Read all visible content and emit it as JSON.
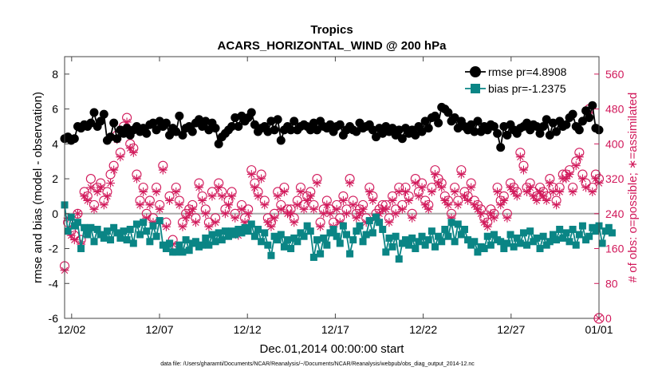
{
  "chart_data": {
    "type": "line",
    "title": "Tropics",
    "subtitle": "ACARS_HORIZONTAL_WIND @ 200 hPa",
    "xlabel": "Dec.01,2014 00:00:00 start",
    "ylabel_left": "rmse and bias (model - observation)",
    "ylabel_right": "# of obs: o=possible; ∗=assimilated",
    "ylim_left": [
      -6,
      9
    ],
    "ylim_right": [
      0,
      600
    ],
    "xlim_days": [
      0.6,
      31.0
    ],
    "x_ticks": [
      {
        "day": 1,
        "label": "12/02"
      },
      {
        "day": 6,
        "label": "12/07"
      },
      {
        "day": 11,
        "label": "12/12"
      },
      {
        "day": 16,
        "label": "12/17"
      },
      {
        "day": 21,
        "label": "12/22"
      },
      {
        "day": 26,
        "label": "12/27"
      },
      {
        "day": 31,
        "label": "01/01"
      }
    ],
    "y_ticks_left": [
      "-6",
      "-4",
      "-2",
      "0",
      "2",
      "4",
      "6",
      "8"
    ],
    "y_ticks_right": [
      "0",
      "80",
      "160",
      "240",
      "320",
      "400",
      "480",
      "560"
    ],
    "legend": [
      {
        "label": "rmse pr=4.8908",
        "color": "#000000"
      },
      {
        "label": "bias pr=-1.2375",
        "color": "#0a8585"
      }
    ],
    "colors": {
      "rmse": "#000000",
      "bias": "#0a8585",
      "obs": "#d1185a",
      "zero_line": "#aaaaaa",
      "axis": "#444444"
    },
    "series": [
      {
        "name": "rmse",
        "axis": "left",
        "values": [
          4.3,
          4.4,
          4.2,
          4.3,
          5.0,
          4.9,
          5.1,
          5.0,
          5.2,
          5.8,
          5.0,
          5.3,
          5.7,
          4.2,
          4.4,
          5.2,
          4.3,
          4.8,
          4.6,
          4.9,
          4.5,
          4.8,
          5.0,
          4.7,
          4.9,
          4.6,
          5.1,
          5.2,
          4.8,
          5.3,
          5.0,
          5.2,
          4.5,
          4.9,
          4.7,
          5.6,
          4.5,
          4.9,
          5.0,
          4.7,
          5.2,
          5.4,
          5.0,
          5.3,
          4.8,
          5.2,
          4.9,
          4.0,
          4.4,
          4.6,
          4.8,
          5.0,
          5.5,
          5.0,
          5.6,
          5.3,
          5.5,
          5.8,
          5.1,
          4.7,
          4.9,
          5.0,
          4.7,
          5.3,
          4.8,
          5.4,
          4.2,
          4.8,
          5.0,
          4.8,
          5.3,
          4.8,
          5.0,
          5.1,
          5.0,
          4.8,
          5.2,
          4.8,
          5.3,
          5.0,
          4.9,
          5.1,
          4.7,
          5.0,
          5.1,
          4.5,
          4.8,
          5.0,
          4.8,
          4.7,
          5.2,
          4.9,
          5.0,
          5.1,
          4.8,
          4.4,
          4.9,
          4.6,
          5.0,
          4.7,
          4.9,
          4.5,
          4.8,
          4.3,
          4.9,
          4.6,
          4.8,
          4.5,
          5.0,
          4.7,
          5.3,
          4.9,
          5.5,
          5.6,
          5.2,
          6.1,
          6.0,
          5.8,
          5.3,
          5.5,
          4.9,
          5.3,
          5.0,
          4.8,
          5.1,
          4.7,
          5.3,
          4.7,
          5.0,
          4.8,
          5.1,
          5.0,
          4.6,
          3.8,
          5.0,
          4.5,
          5.1,
          4.8,
          4.6,
          4.9,
          5.0,
          5.2,
          4.8,
          5.1,
          5.0,
          4.6,
          5.0,
          5.4,
          4.5,
          5.2,
          4.7,
          5.3,
          5.0,
          5.1,
          5.5,
          5.7,
          5.0,
          4.8,
          5.3,
          5.9,
          5.5,
          6.2,
          4.9,
          4.8
        ]
      },
      {
        "name": "bias",
        "axis": "left",
        "values": [
          0.5,
          -1.0,
          -0.2,
          -0.7,
          -0.5,
          -2.0,
          -0.8,
          -1.2,
          -0.8,
          -1.6,
          -0.9,
          -1.2,
          -1.4,
          -1.0,
          -1.5,
          -0.8,
          -1.1,
          -1.4,
          -1.0,
          -1.5,
          -0.9,
          -1.7,
          -0.6,
          -1.2,
          -0.5,
          -1.0,
          -1.6,
          -0.7,
          -1.3,
          -0.4,
          -1.8,
          -2.0,
          -1.7,
          -2.2,
          -2.2,
          -1.8,
          -2.2,
          -1.5,
          -2.1,
          -1.7,
          -1.6,
          -1.9,
          -1.8,
          -1.4,
          -1.8,
          -1.2,
          -1.6,
          -1.1,
          -1.5,
          -1.0,
          -1.3,
          -1.0,
          -1.2,
          -0.9,
          -1.1,
          -0.8,
          -1.0,
          -0.6,
          -1.3,
          -0.9,
          -1.6,
          -1.1,
          -1.8,
          -2.4,
          -1.3,
          -1.5,
          -1.2,
          -1.9,
          -1.5,
          -2.0,
          -1.4,
          -1.6,
          -1.1,
          -1.3,
          -0.7,
          -1.0,
          -2.5,
          -1.5,
          -2.3,
          -1.4,
          -1.8,
          -1.1,
          -0.9,
          -1.3,
          -1.7,
          -0.7,
          -1.2,
          -2.3,
          -1.5,
          -1.0,
          -0.7,
          -1.6,
          -1.2,
          -0.4,
          -1.1,
          -0.2,
          -0.5,
          -0.9,
          -2.2,
          -1.4,
          -1.9,
          -1.3,
          -2.6,
          -1.7,
          -1.5,
          -1.8,
          -1.4,
          -2.0,
          -1.6,
          -1.3,
          -1.8,
          -1.5,
          -1.0,
          -1.9,
          -1.3,
          -1.6,
          -0.9,
          -1.3,
          -0.5,
          -1.6,
          -0.6,
          -1.2,
          -0.9,
          -1.5,
          -1.8,
          -1.6,
          -2.2,
          -1.9,
          -2.0,
          -1.3,
          -1.8,
          -1.2,
          -1.5,
          -1.6,
          -2.0,
          -1.7,
          -1.2,
          -1.9,
          -1.4,
          -1.7,
          -1.1,
          -1.8,
          -1.0,
          -1.6,
          -1.4,
          -2.0,
          -1.3,
          -1.8,
          -1.6,
          -1.2,
          -1.5,
          -0.9,
          -1.4,
          -1.1,
          -1.6,
          -0.9,
          -1.8,
          -1.2,
          -0.7,
          -1.5,
          -1.3,
          -0.8,
          -1.0,
          -0.7,
          -1.7,
          -1.0,
          -0.8,
          -1.1
        ]
      },
      {
        "name": "obs_possible",
        "axis": "right",
        "values": [
          120,
          220,
          200,
          190,
          240,
          180,
          290,
          280,
          320,
          260,
          300,
          310,
          270,
          290,
          330,
          350,
          420,
          380,
          440,
          460,
          400,
          390,
          330,
          270,
          300,
          240,
          270,
          230,
          300,
          260,
          350,
          220,
          280,
          180,
          300,
          270,
          220,
          240,
          250,
          260,
          230,
          310,
          280,
          250,
          220,
          290,
          230,
          310,
          290,
          250,
          270,
          290,
          240,
          200,
          260,
          230,
          250,
          340,
          310,
          290,
          330,
          270,
          230,
          220,
          240,
          290,
          260,
          300,
          250,
          250,
          230,
          270,
          300,
          260,
          280,
          290,
          260,
          320,
          220,
          250,
          270,
          250,
          220,
          260,
          230,
          280,
          250,
          320,
          270,
          240,
          250,
          260,
          230,
          300,
          280,
          240,
          250,
          260,
          260,
          230,
          280,
          250,
          300,
          260,
          300,
          280,
          240,
          320,
          290,
          310,
          270,
          260,
          300,
          340,
          320,
          310,
          280,
          270,
          240,
          300,
          270,
          340,
          290,
          280,
          310,
          270,
          260,
          250,
          230,
          220,
          250,
          240,
          300,
          270,
          280,
          240,
          310,
          300,
          290,
          380,
          350,
          300,
          310,
          290,
          280,
          300,
          290,
          280,
          320,
          300,
          270,
          300,
          330,
          330,
          340,
          300,
          360,
          380,
          330,
          310,
          480,
          300,
          330,
          320
        ]
      },
      {
        "name": "obs_assimilated",
        "axis": "right",
        "values": [
          110,
          230,
          190,
          180,
          240,
          170,
          280,
          270,
          300,
          250,
          290,
          300,
          260,
          280,
          310,
          340,
          410,
          370,
          430,
          450,
          390,
          380,
          320,
          260,
          290,
          230,
          260,
          220,
          290,
          250,
          340,
          210,
          270,
          170,
          290,
          260,
          210,
          230,
          240,
          250,
          220,
          300,
          270,
          240,
          210,
          280,
          220,
          300,
          280,
          240,
          260,
          280,
          230,
          190,
          250,
          220,
          240,
          330,
          300,
          280,
          320,
          260,
          220,
          210,
          230,
          280,
          250,
          290,
          240,
          240,
          220,
          260,
          290,
          250,
          270,
          280,
          250,
          310,
          210,
          240,
          260,
          240,
          210,
          250,
          220,
          270,
          240,
          310,
          260,
          230,
          240,
          250,
          220,
          290,
          270,
          230,
          240,
          250,
          250,
          220,
          270,
          240,
          290,
          250,
          290,
          270,
          230,
          310,
          280,
          300,
          260,
          250,
          290,
          330,
          310,
          300,
          270,
          260,
          230,
          290,
          260,
          330,
          280,
          270,
          300,
          260,
          250,
          240,
          220,
          210,
          240,
          230,
          290,
          260,
          270,
          230,
          300,
          290,
          280,
          370,
          340,
          290,
          300,
          280,
          270,
          290,
          280,
          270,
          310,
          290,
          260,
          290,
          320,
          320,
          330,
          290,
          350,
          370,
          320,
          300,
          470,
          290,
          320,
          310
        ]
      }
    ],
    "footnote": "data file: /Users/gharamti/Documents/NCAR/Reanalysis/~/Documents/NCAR/Reanalysis/webpub/obs_diag_output_2014-12.nc"
  }
}
